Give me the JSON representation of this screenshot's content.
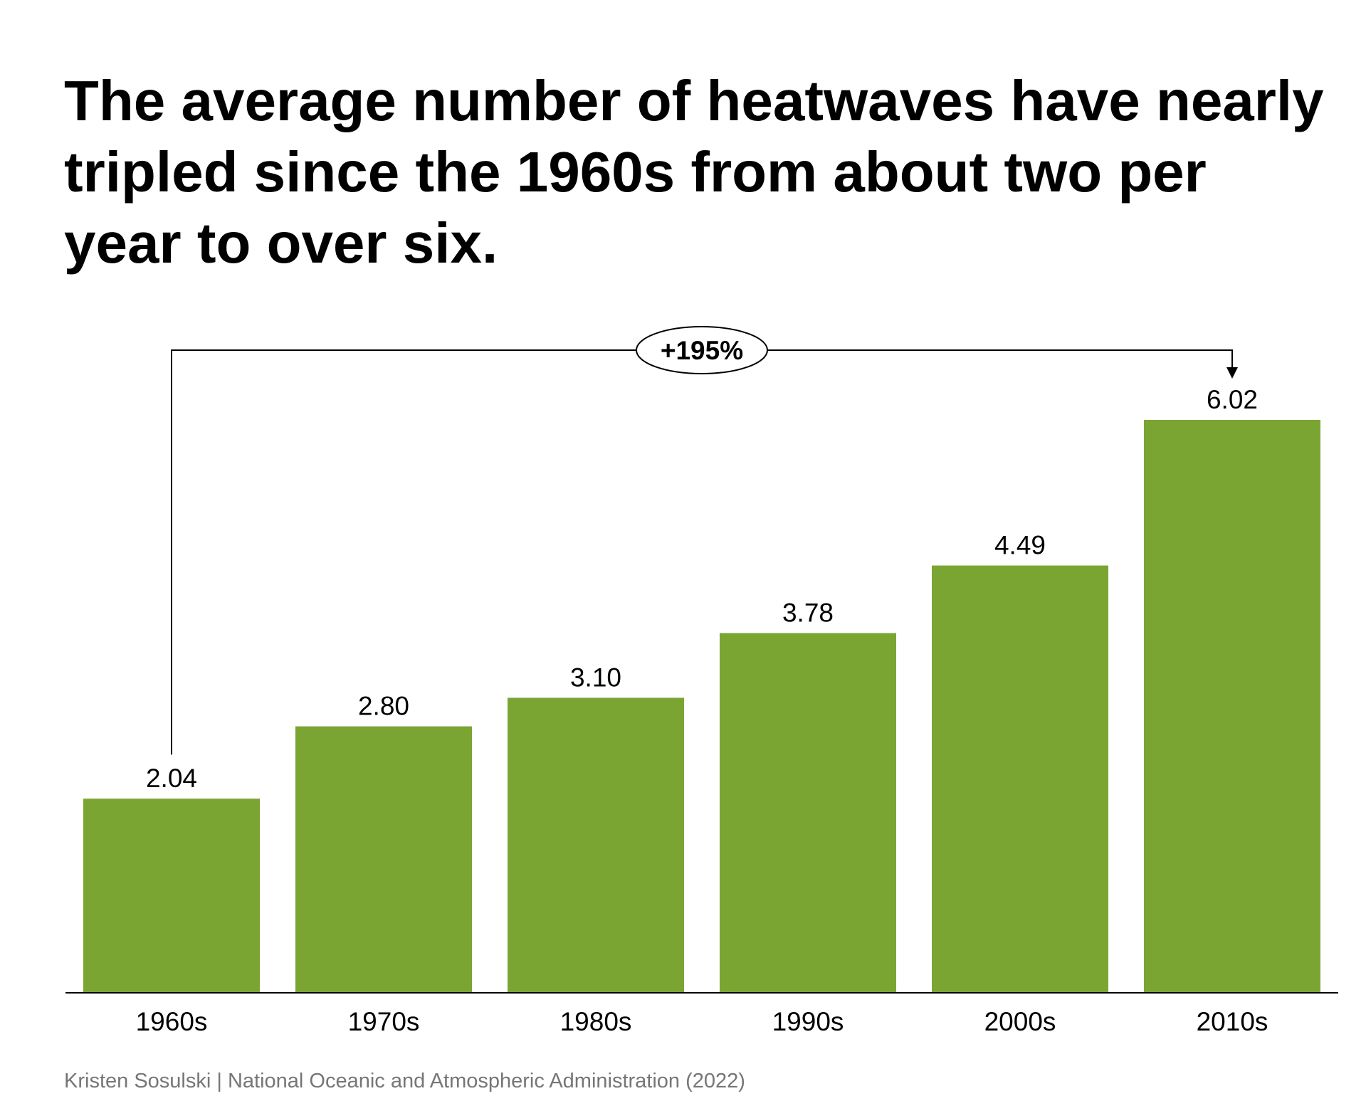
{
  "chart_data": {
    "type": "bar",
    "title": "The average number of heatwaves have nearly tripled since the 1960s from about two per year to over six.",
    "categories": [
      "1960s",
      "1970s",
      "1980s",
      "1990s",
      "2000s",
      "2010s"
    ],
    "values": [
      2.04,
      2.8,
      3.1,
      3.78,
      4.49,
      6.02
    ],
    "value_labels": [
      "2.04",
      "2.80",
      "3.10",
      "3.78",
      "4.49",
      "6.02"
    ],
    "xlabel": "",
    "ylabel": "",
    "ylim": [
      0,
      6.02
    ],
    "grid": false,
    "legend": "none",
    "bar_color": "#7ba533",
    "annotation": {
      "text": "+195%",
      "from_category": "1960s",
      "to_category": "2010s"
    },
    "source": "Kristen Sosulski | National Oceanic and Atmospheric Administration (2022)"
  }
}
